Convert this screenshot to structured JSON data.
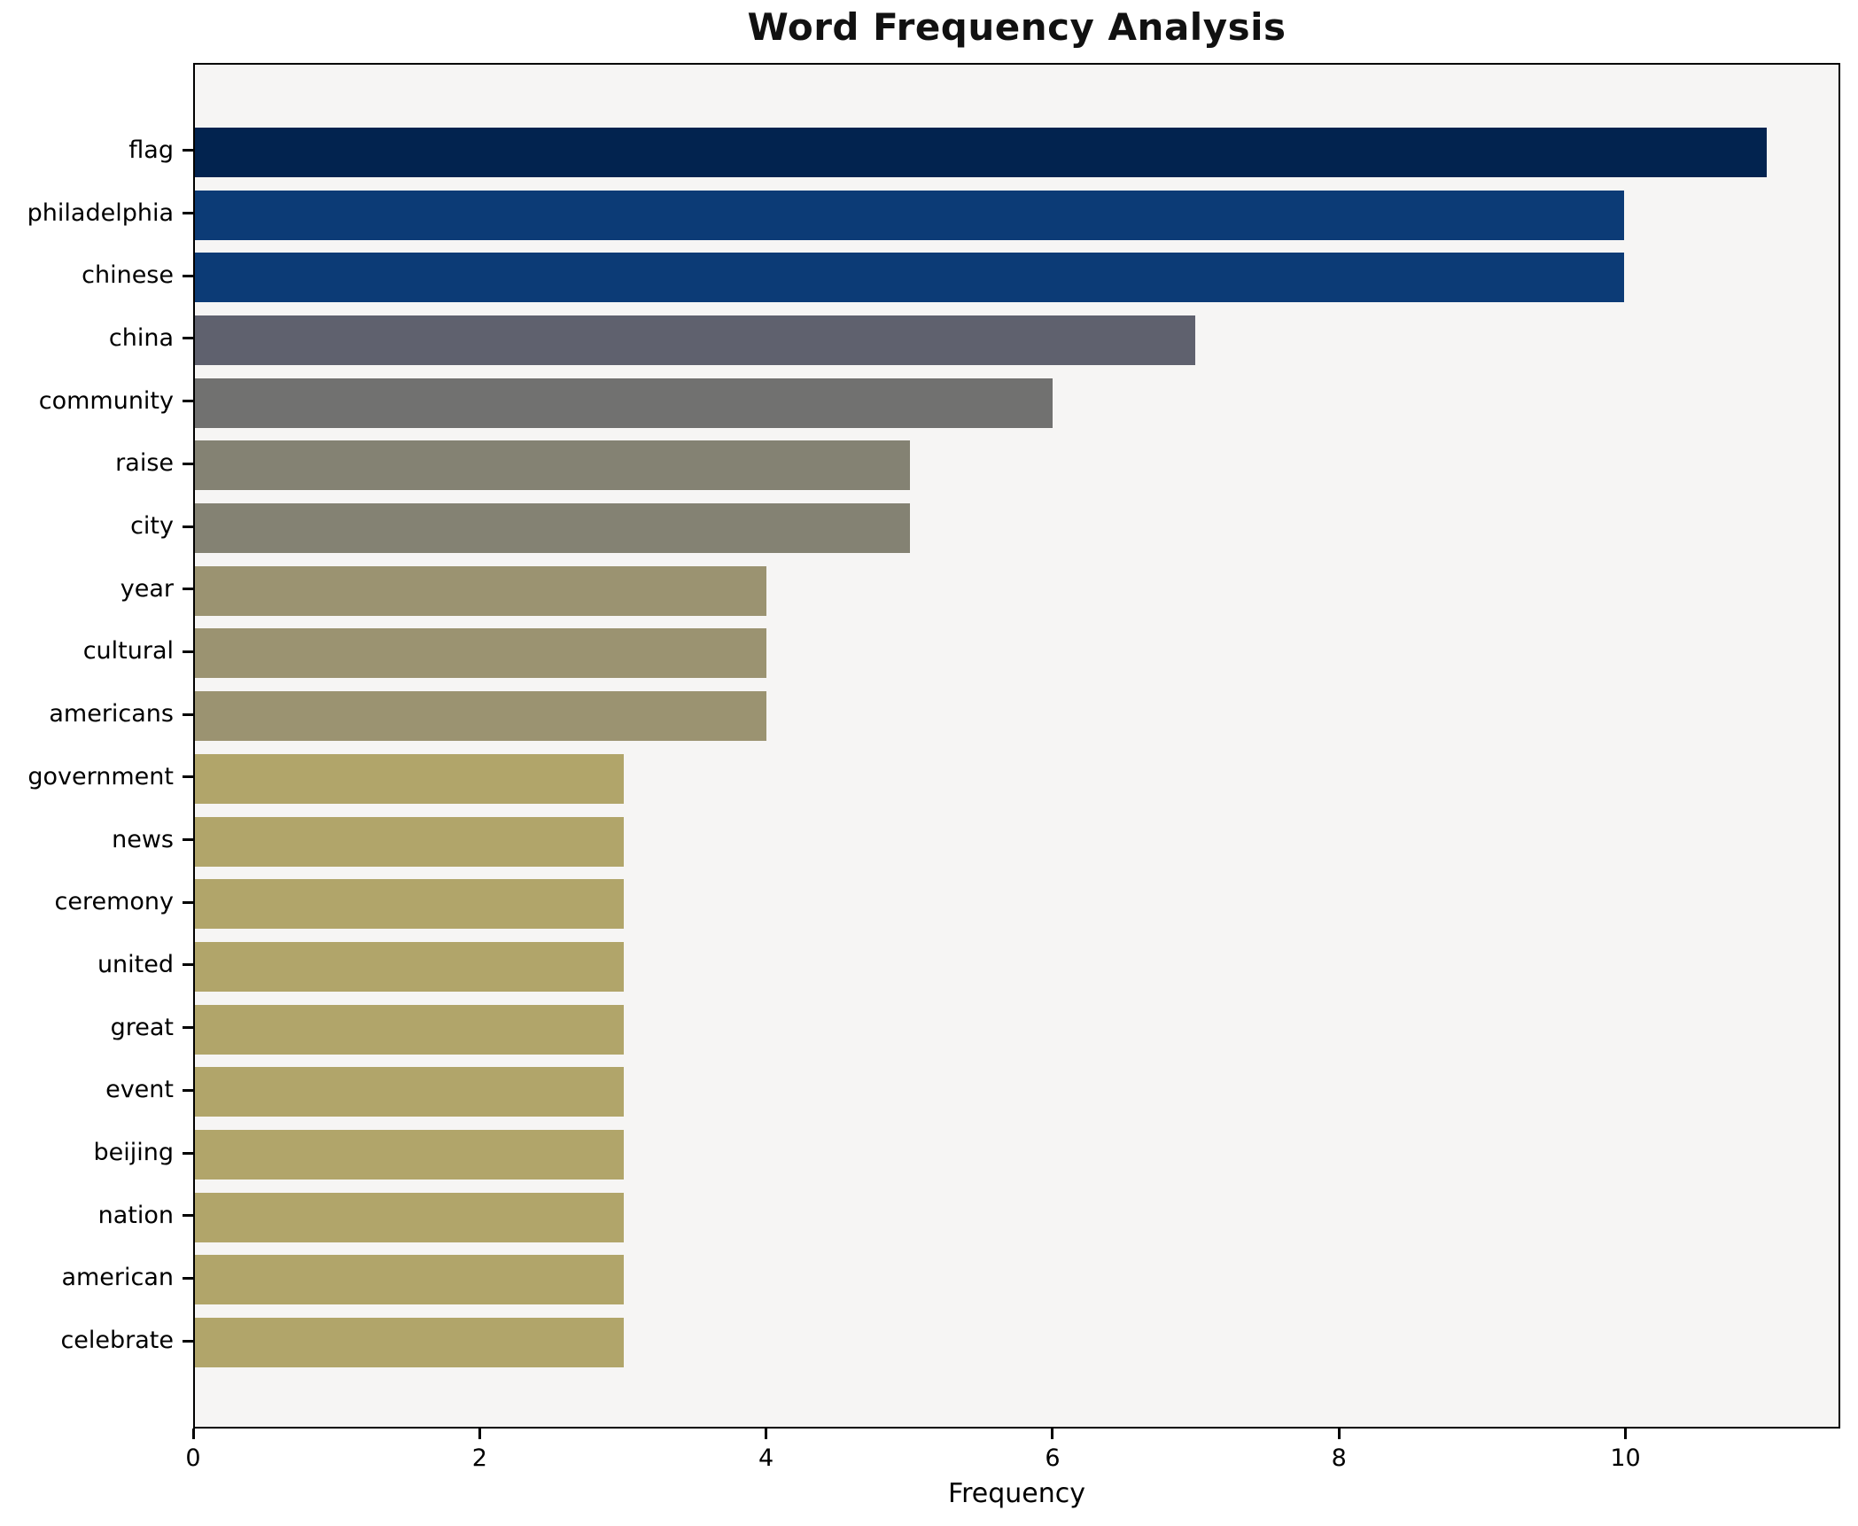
{
  "chart_data": {
    "type": "bar",
    "orientation": "horizontal",
    "title": "Word Frequency Analysis",
    "xlabel": "Frequency",
    "ylabel": "",
    "categories": [
      "flag",
      "philadelphia",
      "chinese",
      "china",
      "community",
      "raise",
      "city",
      "year",
      "cultural",
      "americans",
      "government",
      "news",
      "ceremony",
      "united",
      "great",
      "event",
      "beijing",
      "nation",
      "american",
      "celebrate"
    ],
    "values": [
      11,
      10,
      10,
      7,
      6,
      5,
      5,
      4,
      4,
      4,
      3,
      3,
      3,
      3,
      3,
      3,
      3,
      3,
      3,
      3
    ],
    "bar_colors": [
      "#02234f",
      "#0c3b76",
      "#0c3b76",
      "#5f616e",
      "#717170",
      "#848273",
      "#848273",
      "#9b9371",
      "#9b9371",
      "#9b9371",
      "#b1a56a",
      "#b1a56a",
      "#b1a56a",
      "#b1a56a",
      "#b1a56a",
      "#b1a56a",
      "#b1a56a",
      "#b1a56a",
      "#b1a56a",
      "#b1a56a"
    ],
    "xlim": [
      0,
      11.5
    ],
    "xticks": [
      0,
      2,
      4,
      6,
      8,
      10
    ],
    "grid": false,
    "legend": null,
    "colors": {
      "figure_background": "#ffffff",
      "plot_background": "#f6f5f4",
      "axis": "#000000",
      "text": "#000000",
      "colormap": "cividis reversed by value (high=dark navy, low=khaki)"
    }
  }
}
